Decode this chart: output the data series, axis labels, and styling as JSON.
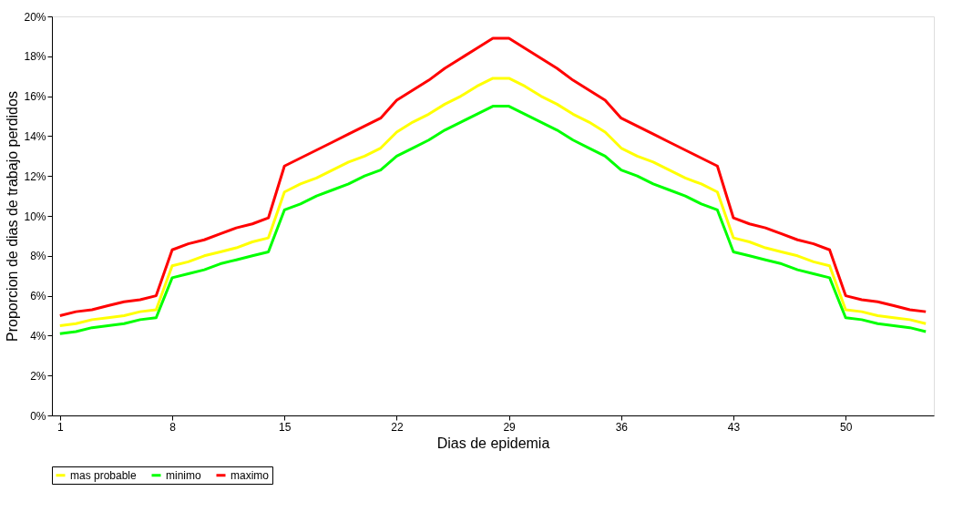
{
  "chart_data": {
    "type": "line",
    "xlabel": "Dias de epidemia",
    "ylabel": "Proporcion de dias de trabajo perdidos",
    "categories": [
      "1",
      null,
      null,
      null,
      null,
      null,
      null,
      "8",
      null,
      null,
      null,
      null,
      null,
      null,
      "15",
      null,
      null,
      null,
      null,
      null,
      null,
      "22",
      null,
      null,
      null,
      null,
      null,
      null,
      "29",
      null,
      null,
      null,
      null,
      null,
      null,
      "36",
      null,
      null,
      null,
      null,
      null,
      null,
      "43",
      null,
      null,
      null,
      null,
      null,
      null,
      "50",
      null,
      null,
      null,
      null,
      null
    ],
    "series": [
      {
        "name": "mas probable",
        "color": "#ffff00",
        "values": [
          4.5,
          4.6,
          4.8,
          4.9,
          5.0,
          5.2,
          5.3,
          7.5,
          7.7,
          8.0,
          8.2,
          8.4,
          8.7,
          8.9,
          11.2,
          11.6,
          11.9,
          12.3,
          12.7,
          13.0,
          13.4,
          14.2,
          14.7,
          15.1,
          15.6,
          16.0,
          16.5,
          16.9,
          16.9,
          16.5,
          16.0,
          15.6,
          15.1,
          14.7,
          14.2,
          13.4,
          13.0,
          12.7,
          12.3,
          11.9,
          11.6,
          11.2,
          8.9,
          8.7,
          8.4,
          8.2,
          8.0,
          7.7,
          7.5,
          5.3,
          5.2,
          5.0,
          4.9,
          4.8,
          4.6
        ]
      },
      {
        "name": "minimo",
        "color": "#00ff00",
        "values": [
          4.1,
          4.2,
          4.4,
          4.5,
          4.6,
          4.8,
          4.9,
          6.9,
          7.1,
          7.3,
          7.6,
          7.8,
          8.0,
          8.2,
          10.3,
          10.6,
          11.0,
          11.3,
          11.6,
          12.0,
          12.3,
          13.0,
          13.4,
          13.8,
          14.3,
          14.7,
          15.1,
          15.5,
          15.5,
          15.1,
          14.7,
          14.3,
          13.8,
          13.4,
          13.0,
          12.3,
          12.0,
          11.6,
          11.3,
          11.0,
          10.6,
          10.3,
          8.2,
          8.0,
          7.8,
          7.6,
          7.3,
          7.1,
          6.9,
          4.9,
          4.8,
          4.6,
          4.5,
          4.4,
          4.2
        ]
      },
      {
        "name": "maximo",
        "color": "#ff0000",
        "values": [
          5.0,
          5.2,
          5.3,
          5.5,
          5.7,
          5.8,
          6.0,
          8.3,
          8.6,
          8.8,
          9.1,
          9.4,
          9.6,
          9.9,
          12.5,
          12.9,
          13.3,
          13.7,
          14.1,
          14.5,
          14.9,
          15.8,
          16.3,
          16.8,
          17.4,
          17.9,
          18.4,
          18.9,
          18.9,
          18.4,
          17.9,
          17.4,
          16.8,
          16.3,
          15.8,
          14.9,
          14.5,
          14.1,
          13.7,
          13.3,
          12.9,
          12.5,
          9.9,
          9.6,
          9.4,
          9.1,
          8.8,
          8.6,
          8.3,
          6.0,
          5.8,
          5.7,
          5.5,
          5.3,
          5.2
        ]
      }
    ],
    "ylim": [
      0,
      20
    ],
    "yticks": [
      {
        "value": 0,
        "label": "0%"
      },
      {
        "value": 2,
        "label": "2%"
      },
      {
        "value": 4,
        "label": "4%"
      },
      {
        "value": 6,
        "label": "6%"
      },
      {
        "value": 8,
        "label": "8%"
      },
      {
        "value": 10,
        "label": "10%"
      },
      {
        "value": 12,
        "label": "12%"
      },
      {
        "value": 14,
        "label": "14%"
      },
      {
        "value": 16,
        "label": "16%"
      },
      {
        "value": 18,
        "label": "18%"
      },
      {
        "value": 20,
        "label": "20%"
      }
    ],
    "grid": false,
    "legend": "bottom",
    "marker": "none",
    "line_style": "solid"
  }
}
